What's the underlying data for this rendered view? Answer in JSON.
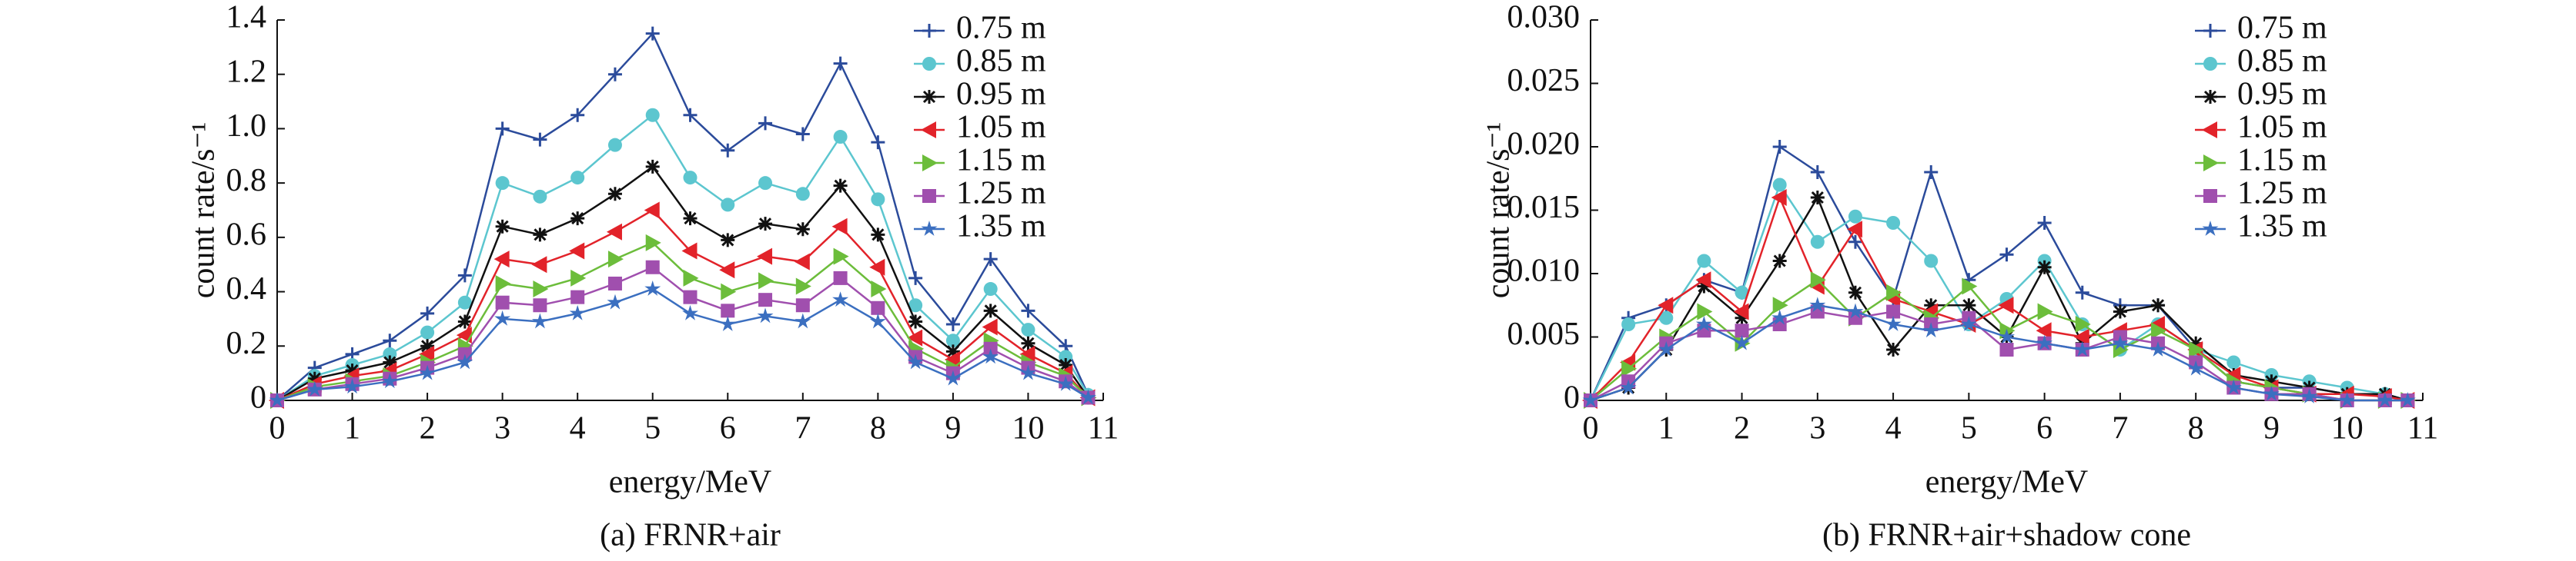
{
  "chart_data": [
    {
      "type": "line",
      "ylabel": "count rate/s⁻¹",
      "xlabel": "energy/MeV",
      "caption": "(a) FRNR+air",
      "x": [
        0,
        0.5,
        1,
        1.5,
        2,
        2.5,
        3,
        3.5,
        4,
        4.5,
        5,
        5.5,
        6,
        6.5,
        7,
        7.5,
        8,
        8.5,
        9,
        9.5,
        10,
        10.5,
        10.8
      ],
      "xlim": [
        0,
        11
      ],
      "xticks": [
        0,
        1,
        2,
        3,
        4,
        5,
        6,
        7,
        8,
        9,
        10,
        11
      ],
      "ylim": [
        0,
        1.4
      ],
      "yticks": [
        0,
        0.2,
        0.4,
        0.6,
        0.8,
        {
          "value": 1.0,
          "label": "1.0"
        },
        1.2,
        1.4
      ],
      "legend": "upper-right",
      "series": [
        {
          "name": "0.75 m",
          "color": "#2b4b9b",
          "marker": "plus",
          "values": [
            0,
            0.12,
            0.17,
            0.22,
            0.32,
            0.46,
            1.0,
            0.96,
            1.05,
            1.2,
            1.35,
            1.05,
            0.92,
            1.02,
            0.98,
            1.24,
            0.95,
            0.45,
            0.28,
            0.52,
            0.33,
            0.2,
            0.02
          ]
        },
        {
          "name": "0.85 m",
          "color": "#5cc6cf",
          "marker": "circle",
          "values": [
            0,
            0.09,
            0.13,
            0.17,
            0.25,
            0.36,
            0.8,
            0.75,
            0.82,
            0.94,
            1.05,
            0.82,
            0.72,
            0.8,
            0.76,
            0.97,
            0.74,
            0.35,
            0.22,
            0.41,
            0.26,
            0.16,
            0.02
          ]
        },
        {
          "name": "0.95 m",
          "color": "#111111",
          "marker": "asterisk",
          "values": [
            0,
            0.08,
            0.11,
            0.14,
            0.2,
            0.29,
            0.64,
            0.61,
            0.67,
            0.76,
            0.86,
            0.67,
            0.59,
            0.65,
            0.63,
            0.79,
            0.61,
            0.29,
            0.18,
            0.33,
            0.21,
            0.13,
            0.01
          ]
        },
        {
          "name": "1.05 m",
          "color": "#e2232a",
          "marker": "triangle-left",
          "values": [
            0,
            0.06,
            0.09,
            0.11,
            0.17,
            0.24,
            0.52,
            0.5,
            0.55,
            0.62,
            0.7,
            0.55,
            0.48,
            0.53,
            0.51,
            0.64,
            0.49,
            0.23,
            0.15,
            0.27,
            0.17,
            0.1,
            0.01
          ]
        },
        {
          "name": "1.15 m",
          "color": "#6cbd3b",
          "marker": "triangle-right",
          "values": [
            0,
            0.05,
            0.07,
            0.09,
            0.14,
            0.2,
            0.43,
            0.41,
            0.45,
            0.52,
            0.58,
            0.45,
            0.4,
            0.44,
            0.42,
            0.53,
            0.41,
            0.19,
            0.12,
            0.22,
            0.14,
            0.09,
            0.01
          ]
        },
        {
          "name": "1.25 m",
          "color": "#a04fae",
          "marker": "square",
          "values": [
            0,
            0.04,
            0.06,
            0.08,
            0.12,
            0.17,
            0.36,
            0.35,
            0.38,
            0.43,
            0.49,
            0.38,
            0.33,
            0.37,
            0.35,
            0.45,
            0.34,
            0.16,
            0.1,
            0.19,
            0.12,
            0.07,
            0.01
          ]
        },
        {
          "name": "1.35 m",
          "color": "#3b6fc0",
          "marker": "star",
          "values": [
            0,
            0.04,
            0.05,
            0.07,
            0.1,
            0.14,
            0.3,
            0.29,
            0.32,
            0.36,
            0.41,
            0.32,
            0.28,
            0.31,
            0.29,
            0.37,
            0.29,
            0.14,
            0.08,
            0.16,
            0.1,
            0.06,
            0.01
          ]
        }
      ]
    },
    {
      "type": "line",
      "ylabel": "count rate/s⁻¹",
      "xlabel": "energy/MeV",
      "caption": "(b) FRNR+air+shadow cone",
      "x": [
        0,
        0.5,
        1,
        1.5,
        2,
        2.5,
        3,
        3.5,
        4,
        4.5,
        5,
        5.5,
        6,
        6.5,
        7,
        7.5,
        8,
        8.5,
        9,
        9.5,
        10,
        10.5,
        10.8
      ],
      "xlim": [
        0,
        11
      ],
      "xticks": [
        0,
        1,
        2,
        3,
        4,
        5,
        6,
        7,
        8,
        9,
        10,
        11
      ],
      "ylim": [
        0,
        0.03
      ],
      "yticks": [
        0,
        0.005,
        {
          "value": 0.01,
          "label": "0.010"
        },
        0.015,
        {
          "value": 0.02,
          "label": "0.020"
        },
        0.025,
        {
          "value": 0.03,
          "label": "0.030"
        }
      ],
      "legend": "upper-right",
      "series": [
        {
          "name": "0.75 m",
          "color": "#2b4b9b",
          "marker": "plus",
          "values": [
            0,
            0.0065,
            0.0075,
            0.0095,
            0.0085,
            0.02,
            0.018,
            0.0125,
            0.008,
            0.018,
            0.0095,
            0.0115,
            0.014,
            0.0085,
            0.0075,
            0.0075,
            0.004,
            0.0015,
            0.001,
            0.001,
            0.0005,
            0.0005,
            0
          ]
        },
        {
          "name": "0.85 m",
          "color": "#5cc6cf",
          "marker": "circle",
          "values": [
            0,
            0.006,
            0.0065,
            0.011,
            0.0085,
            0.017,
            0.0125,
            0.0145,
            0.014,
            0.011,
            0.006,
            0.008,
            0.011,
            0.006,
            0.004,
            0.006,
            0.004,
            0.003,
            0.002,
            0.0015,
            0.001,
            0.0005,
            0
          ]
        },
        {
          "name": "0.95 m",
          "color": "#111111",
          "marker": "asterisk",
          "values": [
            0,
            0.001,
            0.004,
            0.009,
            0.0065,
            0.011,
            0.016,
            0.0085,
            0.004,
            0.0075,
            0.0075,
            0.005,
            0.0105,
            0.0045,
            0.007,
            0.0075,
            0.0045,
            0.002,
            0.0015,
            0.001,
            0.0005,
            0.0005,
            0
          ]
        },
        {
          "name": "1.05 m",
          "color": "#e2232a",
          "marker": "triangle-left",
          "values": [
            0,
            0.003,
            0.0075,
            0.0095,
            0.007,
            0.016,
            0.009,
            0.0135,
            0.008,
            0.007,
            0.006,
            0.0075,
            0.0055,
            0.005,
            0.0055,
            0.006,
            0.004,
            0.002,
            0.001,
            0.0005,
            0.0005,
            0.0003,
            0
          ]
        },
        {
          "name": "1.15 m",
          "color": "#6cbd3b",
          "marker": "triangle-right",
          "values": [
            0,
            0.0025,
            0.005,
            0.007,
            0.0045,
            0.0075,
            0.0095,
            0.0065,
            0.0085,
            0.0065,
            0.009,
            0.0055,
            0.007,
            0.006,
            0.004,
            0.0055,
            0.004,
            0.0015,
            0.001,
            0.0005,
            0,
            0,
            0
          ]
        },
        {
          "name": "1.25 m",
          "color": "#a04fae",
          "marker": "square",
          "values": [
            0,
            0.0015,
            0.0045,
            0.0055,
            0.0055,
            0.006,
            0.007,
            0.0065,
            0.007,
            0.006,
            0.0065,
            0.004,
            0.0045,
            0.004,
            0.005,
            0.0045,
            0.003,
            0.001,
            0.0005,
            0.0005,
            0,
            0,
            0
          ]
        },
        {
          "name": "1.35 m",
          "color": "#3b6fc0",
          "marker": "star",
          "values": [
            0,
            0.001,
            0.004,
            0.006,
            0.0045,
            0.0065,
            0.0075,
            0.007,
            0.006,
            0.0055,
            0.006,
            0.005,
            0.0045,
            0.004,
            0.0045,
            0.004,
            0.0025,
            0.001,
            0.0005,
            0.0003,
            0,
            0,
            0
          ]
        }
      ]
    }
  ]
}
